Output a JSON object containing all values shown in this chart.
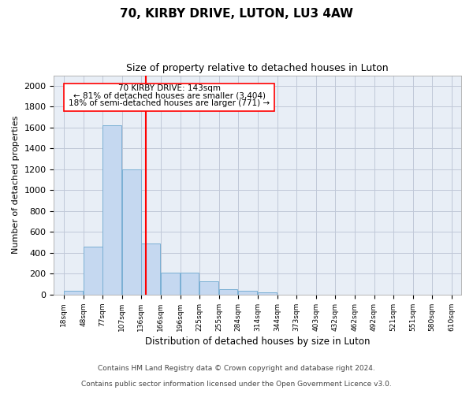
{
  "title": "70, KIRBY DRIVE, LUTON, LU3 4AW",
  "subtitle": "Size of property relative to detached houses in Luton",
  "xlabel": "Distribution of detached houses by size in Luton",
  "ylabel": "Number of detached properties",
  "footnote1": "Contains HM Land Registry data © Crown copyright and database right 2024.",
  "footnote2": "Contains public sector information licensed under the Open Government Licence v3.0.",
  "annotation_line1": "70 KIRBY DRIVE: 143sqm",
  "annotation_line2": "← 81% of detached houses are smaller (3,404)",
  "annotation_line3": "18% of semi-detached houses are larger (771) →",
  "property_size_sqm": 143,
  "bar_color": "#c5d8f0",
  "bar_edge_color": "#7aafd4",
  "vline_color": "red",
  "annotation_box_edgecolor": "red",
  "annotation_box_facecolor": "white",
  "background_color": "#ffffff",
  "plot_bg_color": "#e8eef6",
  "grid_color": "#c0c8d8",
  "bins": [
    18,
    48,
    77,
    107,
    136,
    166,
    196,
    225,
    255,
    284,
    314,
    344,
    373,
    403,
    432,
    462,
    492,
    521,
    551,
    580,
    610
  ],
  "counts": [
    40,
    460,
    1620,
    1200,
    490,
    210,
    210,
    125,
    50,
    40,
    25,
    0,
    0,
    0,
    0,
    0,
    0,
    0,
    0,
    0
  ],
  "ylim": [
    0,
    2100
  ],
  "yticks": [
    0,
    200,
    400,
    600,
    800,
    1000,
    1200,
    1400,
    1600,
    1800,
    2000
  ],
  "tick_labels": [
    "18sqm",
    "48sqm",
    "77sqm",
    "107sqm",
    "136sqm",
    "166sqm",
    "196sqm",
    "225sqm",
    "255sqm",
    "284sqm",
    "314sqm",
    "344sqm",
    "373sqm",
    "403sqm",
    "432sqm",
    "462sqm",
    "492sqm",
    "521sqm",
    "551sqm",
    "580sqm",
    "610sqm"
  ],
  "title_fontsize": 11,
  "subtitle_fontsize": 9,
  "ylabel_fontsize": 8,
  "xlabel_fontsize": 8.5,
  "ytick_fontsize": 8,
  "xtick_fontsize": 6.5,
  "footnote_fontsize": 6.5
}
